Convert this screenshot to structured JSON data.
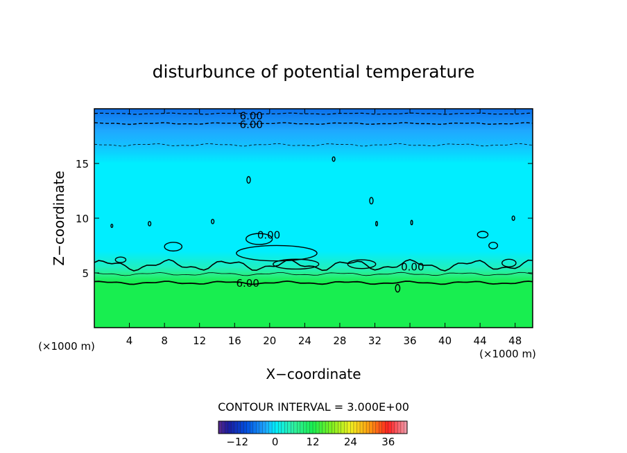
{
  "chart_data": {
    "type": "heatmap",
    "title": "disturbunce of potential temperature",
    "xlabel": "X−coordinate",
    "ylabel": "Z−coordinate",
    "x_unit_left": "(×1000 m)",
    "x_unit_right": "(×1000 m)",
    "xlim": [
      0,
      50
    ],
    "ylim": [
      0,
      20
    ],
    "x_ticks": [
      4,
      8,
      12,
      16,
      20,
      24,
      28,
      32,
      36,
      40,
      44,
      48
    ],
    "y_ticks": [
      5,
      10,
      15
    ],
    "z_range": [
      -18,
      42
    ],
    "contour_interval_label": "CONTOUR INTERVAL = 3.000E+00",
    "contour_labels": [
      {
        "text": "6.00",
        "x": 17.9,
        "z": 19.4
      },
      {
        "text": "6.00",
        "x": 17.9,
        "z": 18.6
      },
      {
        "text": "0.00",
        "x": 19.9,
        "z": 8.5
      },
      {
        "text": "0.00",
        "x": 36.3,
        "z": 5.6
      },
      {
        "text": "6.00",
        "x": 17.5,
        "z": 4.1
      }
    ],
    "z_profile": [
      {
        "z": 0,
        "value": 12
      },
      {
        "z": 4.2,
        "value": 12
      },
      {
        "z": 4.8,
        "value": 8
      },
      {
        "z": 5.5,
        "value": 4
      },
      {
        "z": 7,
        "value": 0
      },
      {
        "z": 15,
        "value": 0
      },
      {
        "z": 16.7,
        "value": -2
      },
      {
        "z": 18,
        "value": -3
      },
      {
        "z": 19,
        "value": -5
      },
      {
        "z": 19.6,
        "value": -6
      },
      {
        "z": 20,
        "value": -7
      }
    ],
    "colorbar": {
      "min": -18,
      "max": 42,
      "ticks": [
        "−12",
        "0",
        "12",
        "24",
        "36"
      ],
      "tick_values": [
        -12,
        0,
        12,
        24,
        36
      ],
      "stops": [
        {
          "value": -18,
          "color": "#5a2a8a"
        },
        {
          "value": -15,
          "color": "#1b1a9e"
        },
        {
          "value": -9,
          "color": "#0050e0"
        },
        {
          "value": -3,
          "color": "#1fa8ff"
        },
        {
          "value": 0,
          "color": "#00eeff"
        },
        {
          "value": 6,
          "color": "#30f0a0"
        },
        {
          "value": 12,
          "color": "#18ee50"
        },
        {
          "value": 18,
          "color": "#80f020"
        },
        {
          "value": 24,
          "color": "#f0f020"
        },
        {
          "value": 30,
          "color": "#ff9a10"
        },
        {
          "value": 36,
          "color": "#ff2020"
        },
        {
          "value": 42,
          "color": "#f0a0b0"
        }
      ]
    }
  }
}
